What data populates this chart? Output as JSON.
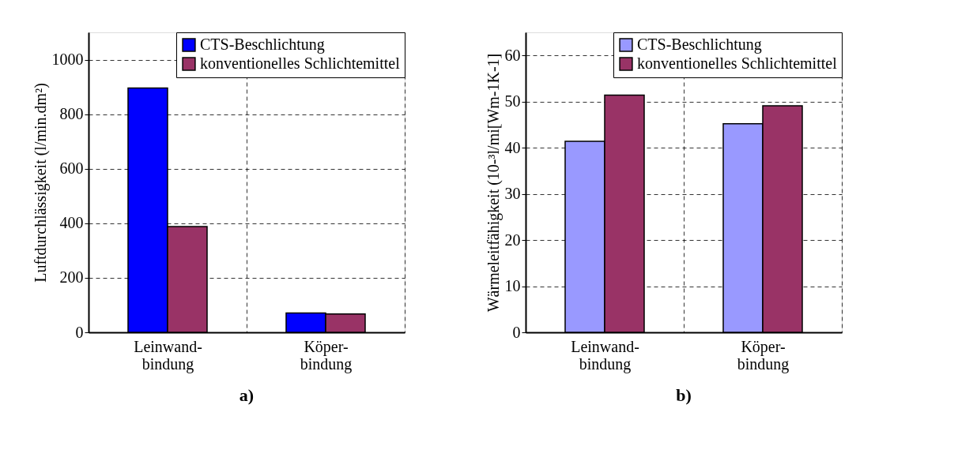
{
  "chart_data": [
    {
      "type": "bar",
      "categories": [
        "Leinwand-\nbindung",
        "Köper-\nbindung"
      ],
      "ylabel": "Luftdurchlässigkeit (l/min.dm²)",
      "series": [
        {
          "name": "CTS-Beschlichtung",
          "color": "#0000ff",
          "values": [
            896,
            71
          ]
        },
        {
          "name": "konventionelles Schlichtemittel",
          "color": "#993366",
          "values": [
            388,
            67
          ]
        }
      ],
      "ylim": [
        0,
        1100
      ],
      "yticks": [
        0,
        200,
        400,
        600,
        800,
        1000
      ],
      "grid": true,
      "legend": "top right",
      "annotations": [
        "a)"
      ]
    },
    {
      "type": "bar",
      "categories": [
        "Leinwand-\nbindung",
        "Köper-\nbindung"
      ],
      "ylabel": "Wärmeleitfähigkeit (10-³l/mi[Wm-1K-1]",
      "series": [
        {
          "name": "CTS-Beschlichtung",
          "color": "#9999ff",
          "values": [
            41.4,
            45.2
          ]
        },
        {
          "name": "konventionelles Schlichtemittel",
          "color": "#993366",
          "values": [
            51.4,
            49.1
          ]
        }
      ],
      "ylim": [
        0,
        65
      ],
      "yticks": [
        0,
        10,
        20,
        30,
        40,
        50,
        60
      ],
      "grid": true,
      "legend": "top right",
      "annotations": [
        "b)"
      ]
    }
  ]
}
